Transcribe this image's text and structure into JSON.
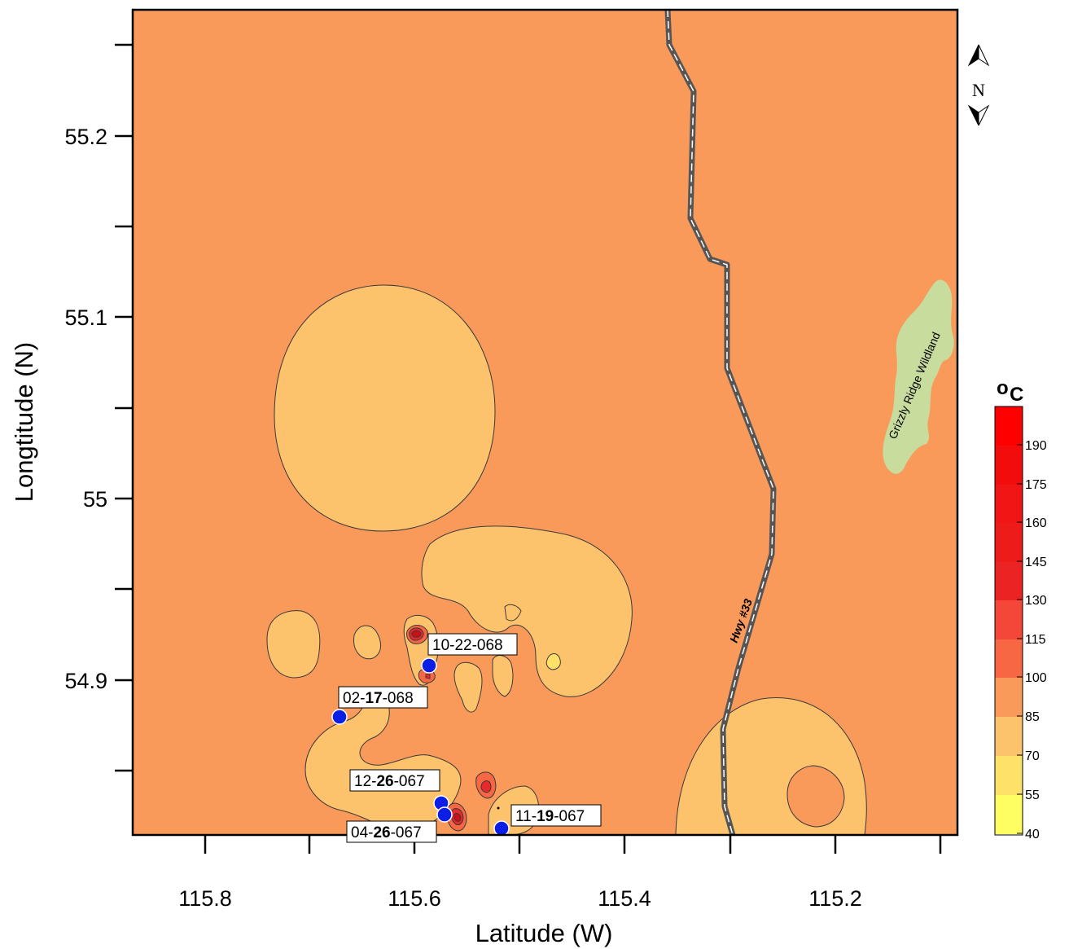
{
  "axes": {
    "x_title": "Latitude (W)",
    "y_title": "Longtitude (N)",
    "x_ticks": [
      "115.8",
      "115.6",
      "115.4",
      "115.2"
    ],
    "y_ticks": [
      "55.2",
      "55.1",
      "55",
      "54.9"
    ]
  },
  "legend": {
    "unit_main": "o",
    "unit_sub": "C",
    "labels": [
      "190",
      "175",
      "160",
      "145",
      "130",
      "115",
      "100",
      "85",
      "70",
      "55",
      "40"
    ]
  },
  "compass": {
    "label": "N"
  },
  "features": {
    "highway": "Hwy #33",
    "wildland": "Grizzly Ridge Wildland"
  },
  "wells": [
    {
      "pre": "10-22-068",
      "bold": "",
      "post": ""
    },
    {
      "pre": "02-",
      "bold": "17",
      "post": "-068"
    },
    {
      "pre": "12-",
      "bold": "26",
      "post": "-067"
    },
    {
      "pre": "04-",
      "bold": "26",
      "post": "-067"
    },
    {
      "pre": "11-",
      "bold": "19",
      "post": "-067"
    }
  ],
  "colors": {
    "background_zone": "#f9995a",
    "zone_70_85": "#fcc26c",
    "zone_55_70": "#fde168",
    "zone_100_115": "#f76744",
    "zone_hot": "#e8292b",
    "well_marker": "#0a1ee6",
    "wildland": "#c8dc9e"
  }
}
